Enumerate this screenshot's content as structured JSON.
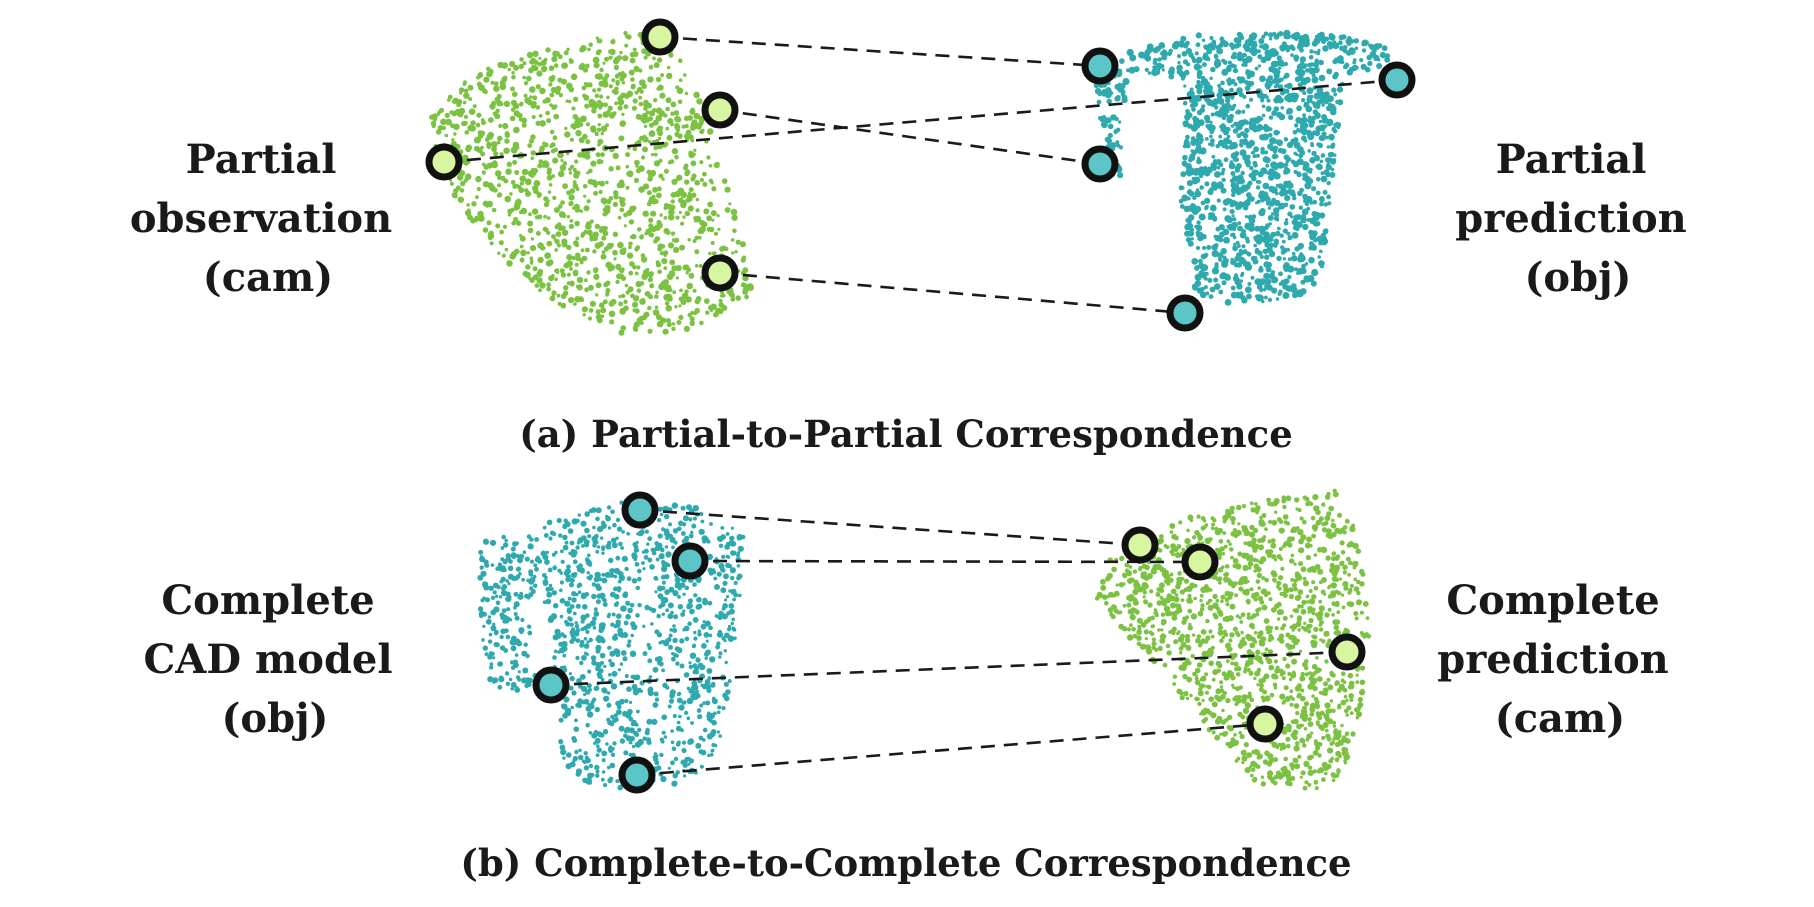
{
  "panel_a": {
    "left_label": [
      "Partial",
      "observation",
      "(cam)"
    ],
    "right_label": [
      "Partial",
      "prediction",
      "(obj)"
    ],
    "caption": "(a) Partial-to-Partial  Correspondence",
    "left_cloud_color": "#7cc242",
    "right_cloud_color": "#2ea9ad"
  },
  "panel_b": {
    "left_label": [
      "Complete",
      "CAD model",
      "(obj)"
    ],
    "right_label": [
      "Complete",
      "prediction",
      "(cam)"
    ],
    "caption": "(b) Complete-to-Complete  Correspondence",
    "left_cloud_color": "#2ea9ad",
    "right_cloud_color": "#7cc242"
  },
  "keypoint_colors": {
    "green": "#d8f5a2",
    "teal": "#5cc5c8",
    "outline": "#111111"
  }
}
